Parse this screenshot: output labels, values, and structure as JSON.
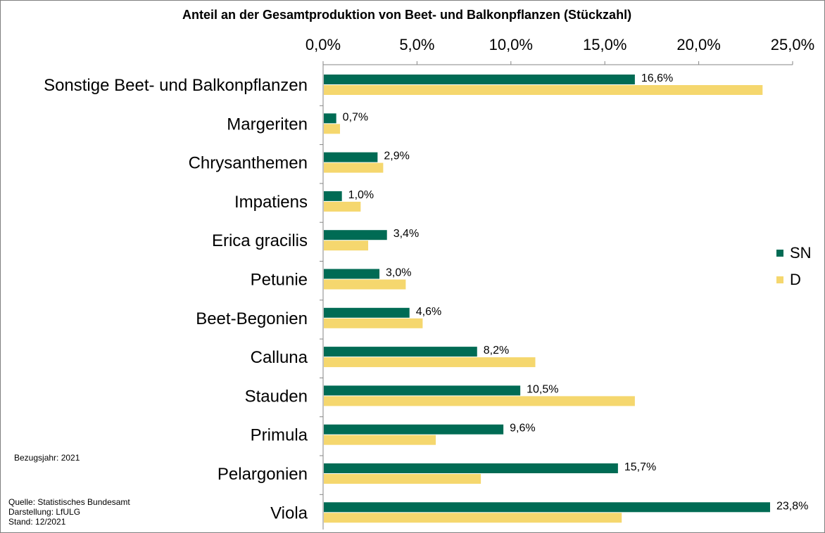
{
  "chart_data": {
    "type": "bar",
    "orientation": "horizontal",
    "title": "Anteil an der Gesamtproduktion  von Beet- und Balkonpflanzen  (Stückzahl)",
    "categories": [
      "Sonstige Beet- und Balkonpflanzen",
      "Margeriten",
      "Chrysanthemen",
      "Impatiens",
      "Erica gracilis",
      "Petunie",
      "Beet-Begonien",
      "Calluna",
      "Stauden",
      "Primula",
      "Pelargonien",
      "Viola"
    ],
    "series": [
      {
        "name": "SN",
        "color": "#006b54",
        "values": [
          16.6,
          0.7,
          2.9,
          1.0,
          3.4,
          3.0,
          4.6,
          8.2,
          10.5,
          9.6,
          15.7,
          23.8
        ],
        "labels": [
          "16,6%",
          "0,7%",
          "2,9%",
          "1,0%",
          "3,4%",
          "3,0%",
          "4,6%",
          "8,2%",
          "10,5%",
          "9,6%",
          "15,7%",
          "23,8%"
        ]
      },
      {
        "name": "D",
        "color": "#f5d76e",
        "values": [
          23.4,
          0.9,
          3.2,
          2.0,
          2.4,
          4.4,
          5.3,
          11.3,
          16.6,
          6.0,
          8.4,
          15.9
        ]
      }
    ],
    "xlim": [
      0,
      25
    ],
    "xticks": [
      0,
      5,
      10,
      15,
      20,
      25
    ],
    "xtick_labels": [
      "0,0%",
      "5,0%",
      "10,0%",
      "15,0%",
      "20,0%",
      "25,0%"
    ],
    "axis_position": "top",
    "legend_position": "right",
    "grid": false
  },
  "notes": {
    "reference_year": "Bezugsjahr: 2021",
    "source": "Quelle: Statistisches Bundesamt",
    "presentation": "Darstellung: LfULG",
    "status": "Stand: 12/2021"
  }
}
